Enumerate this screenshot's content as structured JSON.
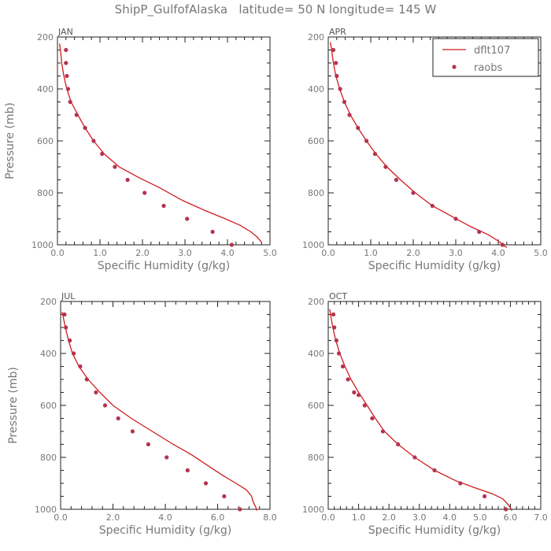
{
  "title": "ShipP_GulfofAlaska   latitude= 50 N longitude= 145 W",
  "colors": {
    "model": "#d01c1c",
    "obs": "#b5334f",
    "axis": "#222222",
    "text": "#777777"
  },
  "legend": {
    "location": "top-right of APR panel",
    "model_label": "dflt107",
    "obs_label": "raobs"
  },
  "chart_data": [
    {
      "type": "line",
      "panel": "JAN",
      "xlabel": "Specific Humidity (g/kg)",
      "ylabel": "Pressure (mb)",
      "xlim": [
        0,
        5
      ],
      "ylim": [
        1000,
        200
      ],
      "xticks": [
        "0.0",
        "1.0",
        "2.0",
        "3.0",
        "4.0",
        "5.0"
      ],
      "yticks": [
        "200",
        "400",
        "600",
        "800",
        "1000"
      ],
      "series": [
        {
          "name": "dflt107",
          "style": "line",
          "x": [
            0.05,
            0.07,
            0.1,
            0.15,
            0.22,
            0.32,
            0.48,
            0.65,
            0.85,
            1.1,
            1.45,
            1.9,
            2.4,
            2.95,
            3.5,
            3.95,
            4.3,
            4.55,
            4.7,
            4.8
          ],
          "y": [
            225,
            250,
            300,
            350,
            400,
            450,
            500,
            550,
            600,
            650,
            700,
            740,
            780,
            830,
            870,
            900,
            925,
            950,
            970,
            990
          ]
        },
        {
          "name": "raobs",
          "style": "marker",
          "x": [
            0.2,
            0.2,
            0.22,
            0.25,
            0.3,
            0.45,
            0.65,
            0.85,
            1.05,
            1.35,
            1.65,
            2.05,
            2.5,
            3.05,
            3.65,
            4.1
          ],
          "y": [
            250,
            300,
            350,
            400,
            450,
            500,
            550,
            600,
            650,
            700,
            750,
            800,
            850,
            900,
            950,
            1000
          ]
        }
      ]
    },
    {
      "type": "line",
      "panel": "APR",
      "xlabel": "Specific Humidity (g/kg)",
      "ylabel": "",
      "xlim": [
        0,
        5
      ],
      "ylim": [
        1000,
        200
      ],
      "xticks": [
        "0.0",
        "1.0",
        "2.0",
        "3.0",
        "4.0",
        "5.0"
      ],
      "yticks": [
        "200",
        "400",
        "600",
        "800",
        "1000"
      ],
      "series": [
        {
          "name": "dflt107",
          "style": "line",
          "x": [
            0.05,
            0.08,
            0.12,
            0.18,
            0.27,
            0.38,
            0.52,
            0.7,
            0.9,
            1.12,
            1.38,
            1.7,
            2.05,
            2.45,
            2.9,
            3.35,
            3.75,
            4.0,
            4.15,
            4.2
          ],
          "y": [
            220,
            250,
            300,
            350,
            400,
            450,
            500,
            550,
            600,
            650,
            700,
            750,
            800,
            850,
            890,
            930,
            960,
            985,
            1005,
            1010
          ]
        },
        {
          "name": "raobs",
          "style": "marker",
          "x": [
            0.12,
            0.18,
            0.2,
            0.28,
            0.38,
            0.5,
            0.7,
            0.9,
            1.1,
            1.35,
            1.6,
            2.0,
            2.45,
            3.0,
            3.55,
            4.1
          ],
          "y": [
            250,
            300,
            350,
            400,
            450,
            500,
            550,
            600,
            650,
            700,
            750,
            800,
            850,
            900,
            950,
            1000
          ]
        }
      ]
    },
    {
      "type": "line",
      "panel": "JUL",
      "xlabel": "Specific Humidity (g/kg)",
      "ylabel": "Pressure (mb)",
      "xlim": [
        0,
        8
      ],
      "ylim": [
        1000,
        200
      ],
      "xticks": [
        "0.0",
        "2.0",
        "4.0",
        "6.0",
        "8.0"
      ],
      "yticks": [
        "200",
        "400",
        "600",
        "800",
        "1000"
      ],
      "series": [
        {
          "name": "dflt107",
          "style": "line",
          "x": [
            0.05,
            0.1,
            0.18,
            0.3,
            0.45,
            0.7,
            1.05,
            1.5,
            2.0,
            2.7,
            3.5,
            4.3,
            5.0,
            5.6,
            6.2,
            6.7,
            7.1,
            7.3,
            7.35,
            7.45,
            7.5
          ],
          "y": [
            240,
            260,
            300,
            350,
            400,
            450,
            500,
            550,
            600,
            650,
            700,
            750,
            790,
            830,
            870,
            900,
            925,
            950,
            970,
            990,
            1005
          ]
        },
        {
          "name": "raobs",
          "style": "marker",
          "x": [
            0.15,
            0.2,
            0.35,
            0.5,
            0.75,
            1.0,
            1.35,
            1.7,
            2.2,
            2.75,
            3.35,
            4.05,
            4.85,
            5.55,
            6.25,
            6.85
          ],
          "y": [
            250,
            300,
            350,
            400,
            450,
            500,
            550,
            600,
            650,
            700,
            750,
            800,
            850,
            900,
            950,
            1000
          ]
        }
      ]
    },
    {
      "type": "line",
      "panel": "OCT",
      "xlabel": "Specific Humidity (g/kg)",
      "ylabel": "",
      "xlim": [
        0,
        7
      ],
      "ylim": [
        1000,
        200
      ],
      "xticks": [
        "0.0",
        "1.0",
        "2.0",
        "3.0",
        "4.0",
        "5.0",
        "6.0",
        "7.0"
      ],
      "yticks": [
        "200",
        "400",
        "600",
        "800",
        "1000"
      ],
      "series": [
        {
          "name": "dflt107",
          "style": "line",
          "x": [
            0.05,
            0.09,
            0.15,
            0.25,
            0.38,
            0.55,
            0.75,
            1.0,
            1.28,
            1.55,
            1.85,
            2.3,
            2.85,
            3.5,
            4.2,
            4.9,
            5.4,
            5.75,
            5.95,
            6.05
          ],
          "y": [
            230,
            260,
            300,
            350,
            400,
            450,
            500,
            550,
            600,
            650,
            700,
            750,
            800,
            850,
            890,
            920,
            940,
            960,
            985,
            1005
          ]
        },
        {
          "name": "raobs",
          "style": "marker",
          "x": [
            0.17,
            0.2,
            0.27,
            0.35,
            0.48,
            0.65,
            0.85,
            1.0,
            1.2,
            1.45,
            1.8,
            2.3,
            2.85,
            3.5,
            4.35,
            5.15,
            5.85
          ],
          "y": [
            250,
            300,
            350,
            400,
            450,
            500,
            550,
            560,
            600,
            650,
            700,
            750,
            800,
            850,
            900,
            950,
            1000
          ]
        }
      ]
    }
  ]
}
